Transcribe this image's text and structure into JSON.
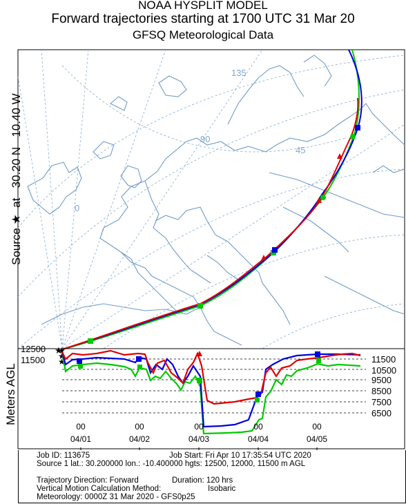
{
  "header": {
    "line1": "NOAA HYSPLIT MODEL",
    "line2": "Forward trajectories starting at 1700 UTC 31 Mar 20",
    "line3": "GFSQ Meteorological Data"
  },
  "side_label": {
    "source": "Source",
    "at": "at",
    "lat": "30.20 N",
    "lon": "10.40 W"
  },
  "map": {
    "graticule_labels": [
      "135",
      "90",
      "45",
      "0"
    ],
    "source_symbol": "★",
    "colors": {
      "land": "#6f9bc9",
      "graticule": "#7fa7cf",
      "frame": "#000000"
    }
  },
  "trajectories": [
    {
      "name": "12500 m",
      "color": "#e00000"
    },
    {
      "name": "12000 m",
      "color": "#0000e0"
    },
    {
      "name": "11500 m",
      "color": "#00c800"
    }
  ],
  "height_panel": {
    "ylabel": "Meters AGL",
    "left_labels": [
      "12500",
      "11500"
    ],
    "right_labels": [
      "11500",
      "10500",
      "9500",
      "8500",
      "7500",
      "6500"
    ],
    "hour_ticks": [
      "00",
      "00",
      "00",
      "00",
      "00"
    ],
    "date_ticks": [
      "04/01",
      "04/02",
      "04/03",
      "04/04",
      "04/05"
    ]
  },
  "info": {
    "job_id": "Job ID: 113675",
    "job_start": "Job Start: Fri Apr 10 17:35:54 UTC 2020",
    "source": "Source 1 lat.: 30.200000   lon.: -10.400000   hgts: 12500, 12000, 11500 m AGL",
    "direction": "Trajectory Direction: Forward",
    "duration": "Duration: 120 hrs",
    "vertical_label": "Vertical Motion Calculation Method:",
    "vertical_value": "Isobaric",
    "meteorology": "Meteorology: 0000Z 31 Mar 2020 - GFS0p25"
  }
}
